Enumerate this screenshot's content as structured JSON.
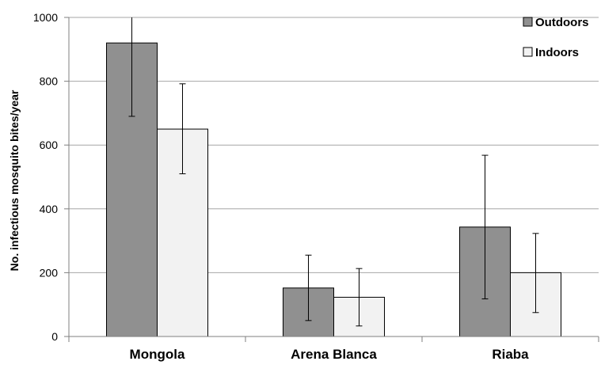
{
  "chart_data": {
    "type": "bar",
    "title": "",
    "xlabel": "",
    "ylabel": "No. infectious mosquito bites/year",
    "ylim": [
      0,
      1000
    ],
    "yticks": [
      0,
      200,
      400,
      600,
      800,
      1000
    ],
    "grid": true,
    "legend_position": "top-right",
    "categories": [
      "Mongola",
      "Arena Blanca",
      "Riaba"
    ],
    "series": [
      {
        "name": "Outdoors",
        "color": "#909090",
        "values": [
          920,
          152,
          343
        ],
        "error_low": [
          690,
          50,
          118
        ],
        "error_high": [
          1000,
          255,
          568
        ]
      },
      {
        "name": "Indoors",
        "color": "#f2f2f2",
        "values": [
          650,
          123,
          200
        ],
        "error_low": [
          510,
          33,
          75
        ],
        "error_high": [
          792,
          213,
          323
        ]
      }
    ]
  }
}
